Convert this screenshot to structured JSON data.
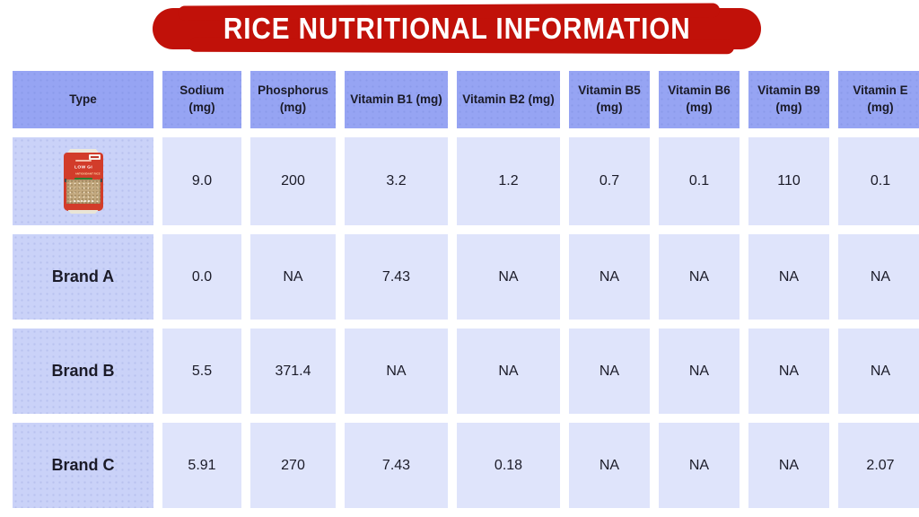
{
  "title": "RICE NUTRITIONAL INFORMATION",
  "colors": {
    "banner_red": "#c11109",
    "header_blue": "#96a4f3",
    "type_cell_blue": "#cad2f8",
    "data_cell_blue": "#dfe4fb",
    "bag_red": "#d23c2a",
    "rice_tan": "#c2a87e",
    "text_dark": "#1b1b28"
  },
  "table": {
    "columns": [
      "Type",
      "Sodium (mg)",
      "Phosphorus (mg)",
      "Vitamin B1 (mg)",
      "Vitamin B2 (mg)",
      "Vitamin B5 (mg)",
      "Vitamin B6 (mg)",
      "Vitamin B9 (mg)",
      "Vitamin E (mg)"
    ],
    "rows": [
      {
        "type_label": "",
        "type_is_image": true,
        "image": {
          "name": "rice-bag-product-photo",
          "label_main": "LOW GI",
          "label_sub": "ANTIOXIDANT RICE"
        },
        "values": [
          "9.0",
          "200",
          "3.2",
          "1.2",
          "0.7",
          "0.1",
          "110",
          "0.1"
        ]
      },
      {
        "type_label": "Brand A",
        "type_is_image": false,
        "values": [
          "0.0",
          "NA",
          "7.43",
          "NA",
          "NA",
          "NA",
          "NA",
          "NA"
        ]
      },
      {
        "type_label": "Brand B",
        "type_is_image": false,
        "values": [
          "5.5",
          "371.4",
          "NA",
          "NA",
          "NA",
          "NA",
          "NA",
          "NA"
        ]
      },
      {
        "type_label": "Brand C",
        "type_is_image": false,
        "values": [
          "5.91",
          "270",
          "7.43",
          "0.18",
          "NA",
          "NA",
          "NA",
          "2.07"
        ]
      }
    ]
  },
  "chart_data": {
    "type": "table",
    "title": "RICE NUTRITIONAL INFORMATION",
    "columns": [
      "Type",
      "Sodium (mg)",
      "Phosphorus (mg)",
      "Vitamin B1 (mg)",
      "Vitamin B2 (mg)",
      "Vitamin B5 (mg)",
      "Vitamin B6 (mg)",
      "Vitamin B9 (mg)",
      "Vitamin E (mg)"
    ],
    "rows": [
      [
        "LOW GI rice (product image)",
        "9.0",
        "200",
        "3.2",
        "1.2",
        "0.7",
        "0.1",
        "110",
        "0.1"
      ],
      [
        "Brand A",
        "0.0",
        "NA",
        "7.43",
        "NA",
        "NA",
        "NA",
        "NA",
        "NA"
      ],
      [
        "Brand B",
        "5.5",
        "371.4",
        "NA",
        "NA",
        "NA",
        "NA",
        "NA",
        "NA"
      ],
      [
        "Brand C",
        "5.91",
        "270",
        "7.43",
        "0.18",
        "NA",
        "NA",
        "NA",
        "2.07"
      ]
    ]
  }
}
